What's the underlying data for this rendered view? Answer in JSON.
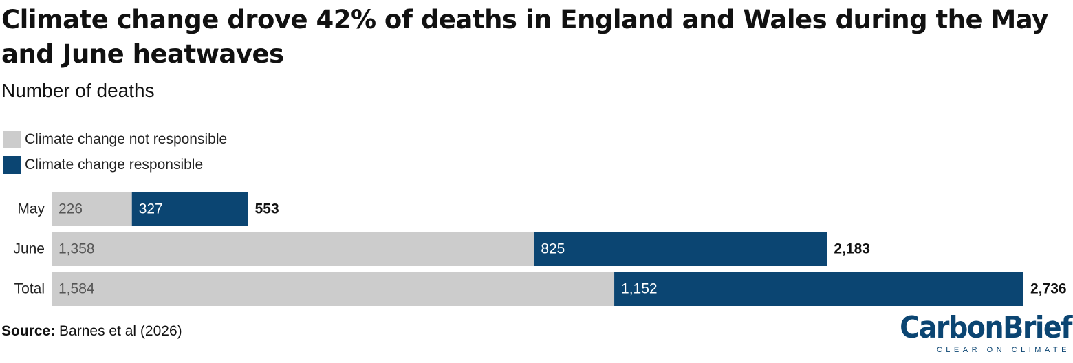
{
  "title": "Climate change drove 42% of deaths in England and Wales during the May and June heatwaves",
  "subtitle": "Number of deaths",
  "legend": [
    {
      "label": "Climate change not responsible",
      "color": "#cccccc"
    },
    {
      "label": "Climate change responsible",
      "color": "#0b4572"
    }
  ],
  "chart_data": {
    "type": "bar",
    "orientation": "horizontal",
    "stacked": true,
    "categories": [
      "May",
      "June",
      "Total"
    ],
    "series": [
      {
        "name": "Climate change not responsible",
        "values": [
          226,
          1358,
          1584
        ],
        "labels": [
          "226",
          "1,358",
          "1,584"
        ],
        "color": "#cccccc"
      },
      {
        "name": "Climate change responsible",
        "values": [
          327,
          825,
          1152
        ],
        "labels": [
          "327",
          "825",
          "1,152"
        ],
        "color": "#0b4572"
      }
    ],
    "totals": [
      553,
      2183,
      2736
    ],
    "total_labels": [
      "553",
      "2,183",
      "2,736"
    ],
    "xlim": [
      0,
      2736
    ],
    "grid": false,
    "legend_position": "top-left"
  },
  "source": {
    "label": "Source:",
    "text": "Barnes et al (2026)"
  },
  "logo": {
    "word_part1": "Carbon",
    "word_part2": "Brief",
    "tagline": "CLEAR ON CLIMATE"
  }
}
